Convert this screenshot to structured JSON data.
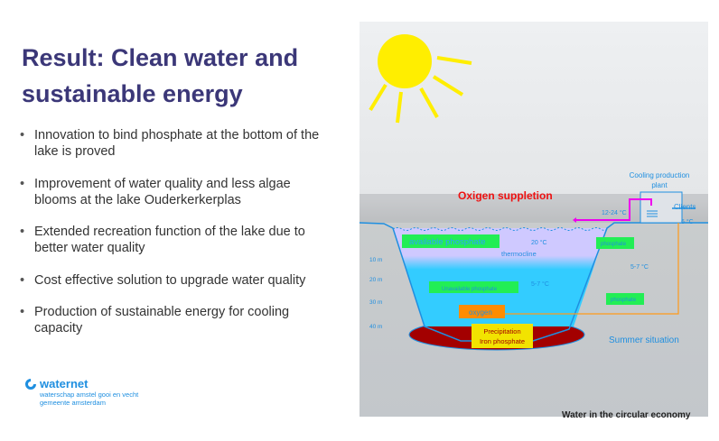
{
  "slide": {
    "title": "Result: Clean water and sustainable energy",
    "bullets": [
      "Innovation to bind phosphate at the bottom of  the lake is proved",
      "Improvement of water quality and less algae  blooms at the lake Ouderkerkerplas",
      "Extended recreation function of the lake due to  better water quality",
      "Cost effective solution to upgrade water quality",
      "Production of sustainable energy for cooling capacity"
    ],
    "footer": "Water in the circular economy"
  },
  "logo": {
    "name": "waternet",
    "line1": "waterschap amstel gooi en vecht",
    "line2": "gemeente amsterdam"
  },
  "diagram": {
    "oxygen_title": "Oxigen suppletion",
    "cooling_plant_1": "Cooling production",
    "cooling_plant_2": "plant",
    "temp_inlet": "12-24 °C",
    "clients": "Clients",
    "temp_clients": "6 °C",
    "available_phosphate": "available phosphate",
    "temp_surface": "20 °C",
    "thermocline": "thermocline",
    "phosphate_out": "phosphate",
    "temp_return": "5-7 °C",
    "depth_10": "10 m",
    "depth_20": "20 m",
    "depth_30": "30 m",
    "depth_40": "40 m",
    "unavailable_phosphate": "Unavailable phosphate",
    "temp_deep": "5-7 °C",
    "phosphate_return": "phosphate",
    "oxygen": "oxygen",
    "precipitation_1": "Precipitation",
    "precipitation_2": "Iron phosphate",
    "summer": "Summer situation",
    "colors": {
      "title": "#3b3778",
      "accent_blue": "#1f8fe0",
      "sun": "#ffee00",
      "oxygen_red": "#ee1111",
      "sediment": "#a30000",
      "label_green": "#22ee55",
      "oxygen_orange": "#ff8c00",
      "pipe_magenta": "#ee00ee"
    }
  }
}
